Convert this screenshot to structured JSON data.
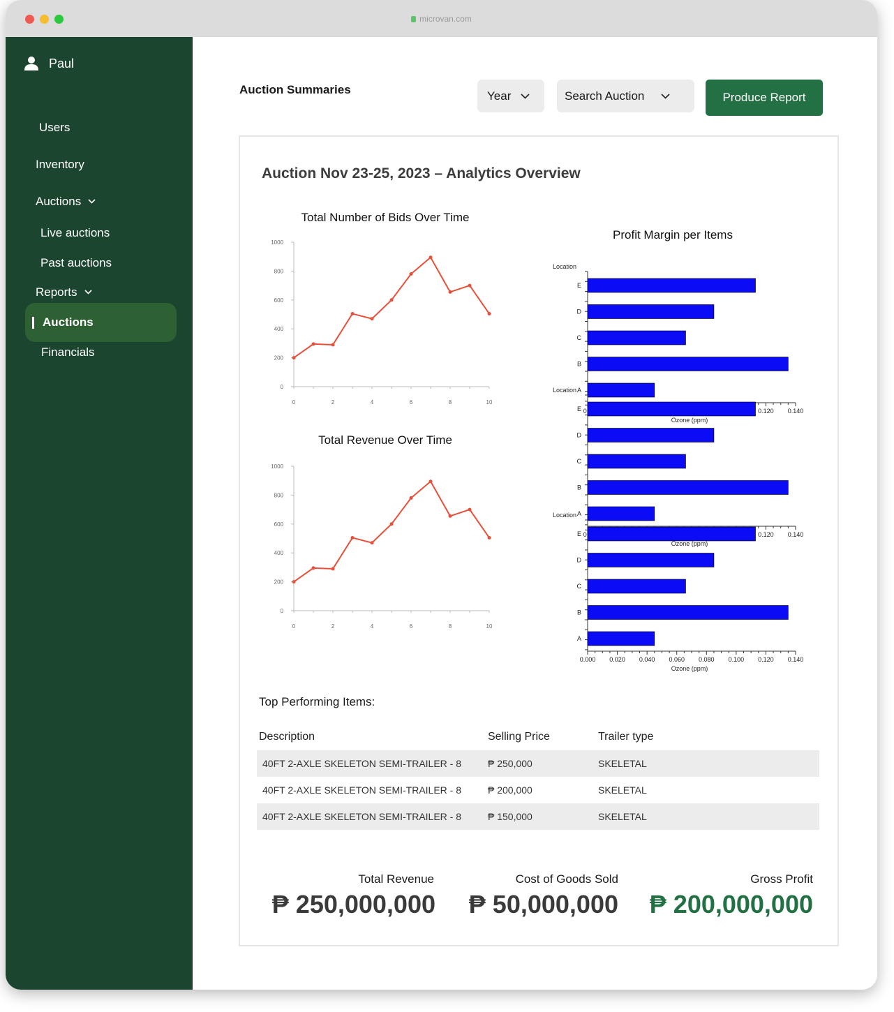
{
  "browser": {
    "url": "microvan.com"
  },
  "sidebar": {
    "user_name": "Paul",
    "items": [
      {
        "label": "Users"
      },
      {
        "label": "Inventory"
      },
      {
        "label": "Auctions"
      },
      {
        "label": "Live auctions"
      },
      {
        "label": "Past auctions"
      },
      {
        "label": "Reports"
      },
      {
        "label": "Auctions"
      },
      {
        "label": "Financials"
      }
    ]
  },
  "header": {
    "title": "Auction Summaries",
    "year_dropdown": "Year",
    "search_dropdown": "Search Auction",
    "produce_button": "Produce Report"
  },
  "report": {
    "title": "Auction Nov 23-25, 2023 – Analytics Overview"
  },
  "chart_data": [
    {
      "type": "line",
      "title": "Total Number of Bids Over Time",
      "x": [
        0,
        1,
        2,
        3,
        4,
        5,
        6,
        7,
        8,
        9,
        10
      ],
      "y": [
        200,
        295,
        290,
        505,
        470,
        600,
        780,
        895,
        655,
        700,
        505
      ],
      "xticks": [
        "0",
        "2",
        "4",
        "6",
        "8",
        "10"
      ],
      "yticks": [
        "0",
        "200",
        "400",
        "600",
        "800",
        "1000"
      ],
      "xlim": [
        0,
        10
      ],
      "ylim": [
        0,
        1000
      ],
      "color": "#e8503a"
    },
    {
      "type": "line",
      "title": "Total Revenue Over Time",
      "x": [
        0,
        1,
        2,
        3,
        4,
        5,
        6,
        7,
        8,
        9,
        10
      ],
      "y": [
        200,
        295,
        290,
        505,
        470,
        600,
        780,
        895,
        655,
        700,
        505
      ],
      "xticks": [
        "0",
        "2",
        "4",
        "6",
        "8",
        "10"
      ],
      "yticks": [
        "0",
        "200",
        "400",
        "600",
        "800",
        "1000"
      ],
      "xlim": [
        0,
        10
      ],
      "ylim": [
        0,
        1000
      ],
      "color": "#e8503a"
    },
    {
      "type": "bar",
      "orientation": "horizontal",
      "title": "Profit Margin per Items",
      "ylabel": "Location",
      "xlabel": "Ozone (ppm)",
      "categories": [
        "E",
        "D",
        "C",
        "B",
        "A"
      ],
      "values": [
        0.113,
        0.085,
        0.066,
        0.135,
        0.045
      ],
      "xlim": [
        0,
        0.14
      ],
      "xticks": [
        "0.000",
        "0.020",
        "0.040",
        "0.060",
        "0.080",
        "0.100",
        "0.120",
        "0.140"
      ],
      "color": "#0b0bf5",
      "repeats": 3
    }
  ],
  "table": {
    "title": "Top Performing Items:",
    "headers": [
      "Description",
      "Selling Price",
      "Trailer type"
    ],
    "rows": [
      {
        "description": "40FT 2-AXLE SKELETON SEMI-TRAILER - 8",
        "price": "₱ 250,000",
        "type": "SKELETAL"
      },
      {
        "description": "40FT 2-AXLE SKELETON SEMI-TRAILER - 8",
        "price": "₱ 200,000",
        "type": "SKELETAL"
      },
      {
        "description": "40FT 2-AXLE SKELETON SEMI-TRAILER - 8",
        "price": "₱ 150,000",
        "type": "SKELETAL"
      }
    ]
  },
  "summary": {
    "revenue_label": "Total Revenue",
    "revenue_value": "₱ 250,000,000",
    "cogs_label": "Cost of Goods Sold",
    "cogs_value": "₱ 50,000,000",
    "profit_label": "Gross Profit",
    "profit_value": "₱ 200,000,000",
    "profit_color": "#237044"
  }
}
